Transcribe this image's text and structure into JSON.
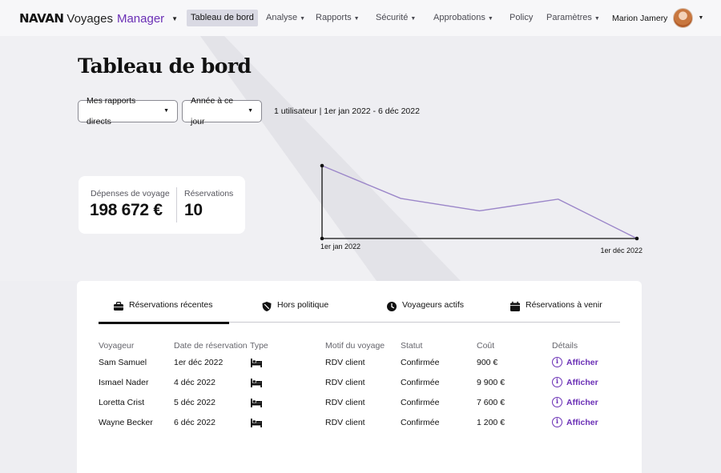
{
  "brand": {
    "logo": "NAVAN",
    "product": "Voyages",
    "role": "Manager"
  },
  "nav": {
    "items": [
      {
        "label": "Tableau de bord",
        "active": true,
        "dropdown": false
      },
      {
        "label": "Analyse",
        "active": false,
        "dropdown": true
      },
      {
        "label": "Rapports",
        "active": false,
        "dropdown": true
      },
      {
        "label": "Sécurité",
        "active": false,
        "dropdown": true
      },
      {
        "label": "Approbations",
        "active": false,
        "dropdown": true
      },
      {
        "label": "Policy",
        "active": false,
        "dropdown": false
      },
      {
        "label": "Paramètres",
        "active": false,
        "dropdown": true
      }
    ],
    "user": {
      "name": "Marion Jamery"
    }
  },
  "page": {
    "title": "Tableau de bord",
    "filters": {
      "scope": "Mes rapports directs",
      "period": "Année à ce jour"
    },
    "range_text": "1 utilisateur | 1er jan 2022 - 6 déc 2022"
  },
  "kpis": [
    {
      "label": "Dépenses de voyage",
      "value": "198 672 €"
    },
    {
      "label": "Réservations",
      "value": "10"
    }
  ],
  "chart_data": {
    "type": "line",
    "x_tick_labels": [
      "1er jan 2022",
      "1er déc 2022"
    ],
    "series": [
      {
        "values": [
          1.0,
          0.55,
          0.38,
          0.54,
          0.0
        ]
      }
    ],
    "color": "#9b86c9",
    "axis_color": "#111111"
  },
  "panel": {
    "tabs": [
      {
        "label": "Réservations récentes",
        "icon": "briefcase-icon",
        "active": true
      },
      {
        "label": "Hors politique",
        "icon": "shield-icon",
        "active": false
      },
      {
        "label": "Voyageurs actifs",
        "icon": "clock-icon",
        "active": false
      },
      {
        "label": "Réservations à venir",
        "icon": "calendar-icon",
        "active": false
      }
    ],
    "columns": [
      "Voyageur",
      "Date de réservation",
      "Type",
      "Motif du voyage",
      "Statut",
      "Coût",
      "Détails"
    ],
    "rows": [
      {
        "traveler": "Sam Samuel",
        "date": "1er déc 2022",
        "type": "bed-icon",
        "reason": "RDV client",
        "status": "Confirmée",
        "cost": "900 €",
        "details": "Afficher"
      },
      {
        "traveler": "Ismael Nader",
        "date": "4 déc 2022",
        "type": "bed-icon",
        "reason": "RDV client",
        "status": "Confirmée",
        "cost": "9 900 €",
        "details": "Afficher"
      },
      {
        "traveler": "Loretta Crist",
        "date": "5 déc 2022",
        "type": "bed-icon",
        "reason": "RDV client",
        "status": "Confirmée",
        "cost": "7 600 €",
        "details": "Afficher"
      },
      {
        "traveler": "Wayne Becker",
        "date": "6 déc 2022",
        "type": "bed-icon",
        "reason": "RDV client",
        "status": "Confirmée",
        "cost": "1 200 €",
        "details": "Afficher"
      }
    ]
  },
  "colors": {
    "accent": "#6a2fb5",
    "background": "#eeeef2",
    "nav_active": "#d9d9e3"
  }
}
